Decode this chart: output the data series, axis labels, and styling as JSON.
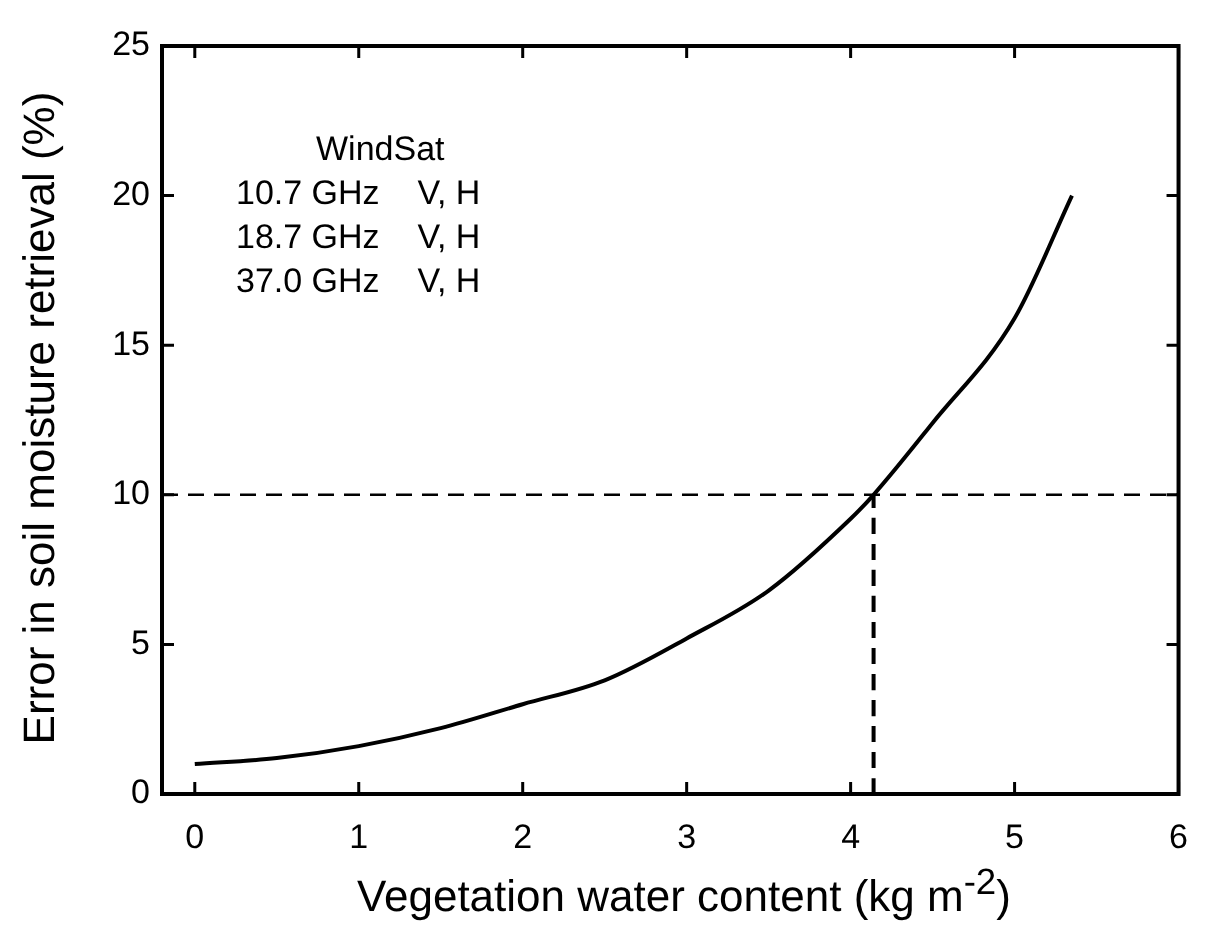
{
  "chart_data": {
    "type": "line",
    "xlabel": "Vegetation water content (kg m$^{-2}$)",
    "ylabel": "Error in soil moisture retrieval (%)",
    "xlim": [
      -0.2,
      6
    ],
    "xticks": [
      0,
      1,
      2,
      3,
      4,
      5,
      6
    ],
    "ylim": [
      0,
      25
    ],
    "yticks": [
      0,
      5,
      10,
      15,
      20,
      25
    ],
    "series": [
      {
        "color": "#000000",
        "x": [
          0,
          0.5,
          1,
          1.5,
          2,
          2.5,
          3,
          3.5,
          4,
          4.14,
          4.5,
          5,
          5.35
        ],
        "values": [
          1.0,
          1.2,
          1.6,
          2.2,
          3.0,
          3.8,
          5.2,
          6.8,
          9.2,
          10,
          12.4,
          15.9,
          20
        ]
      },
      {
        "color": "#000000",
        "line_style": "dashed",
        "x": [
          4.14,
          4.14
        ],
        "values": [
          0,
          10
        ]
      }
    ],
    "ref_lines": [
      {
        "axis": "y",
        "value": 10,
        "color": "#000000",
        "line_style": "dashed"
      }
    ],
    "annotations": [
      "WindSat",
      "10.7 GHz    V, H",
      "18.7 GHz    V, H",
      "37.0 GHz    V, H"
    ],
    "grid": false,
    "legend": false,
    "marker": "none"
  }
}
